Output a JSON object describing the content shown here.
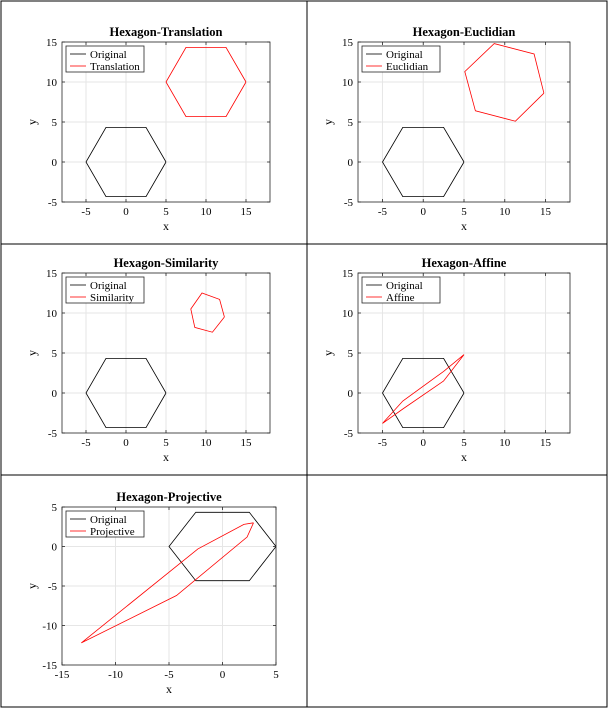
{
  "colors": {
    "original": "#000000",
    "transformed": "#ff0000",
    "grid": "#e6e6e6",
    "axes": "#262626"
  },
  "chart_data": [
    {
      "type": "line",
      "title": "Hexagon-Translation",
      "xlabel": "x",
      "ylabel": "y",
      "xlim": [
        -8,
        18
      ],
      "ylim": [
        -5,
        15
      ],
      "xticks": [
        -5,
        0,
        5,
        10,
        15
      ],
      "yticks": [
        -5,
        0,
        5,
        10,
        15
      ],
      "grid": true,
      "legend_position": "top-left",
      "series": [
        {
          "name": "Original",
          "color": "#000000",
          "x": [
            5,
            2.5,
            -2.5,
            -5,
            -2.5,
            2.5,
            5
          ],
          "y": [
            0,
            4.33,
            4.33,
            0,
            -4.33,
            -4.33,
            0
          ]
        },
        {
          "name": "Translation",
          "color": "#ff0000",
          "x": [
            15,
            12.5,
            7.5,
            5,
            7.5,
            12.5,
            15
          ],
          "y": [
            10,
            14.33,
            14.33,
            10,
            5.67,
            5.67,
            10
          ]
        }
      ]
    },
    {
      "type": "line",
      "title": "Hexagon-Euclidian",
      "xlabel": "x",
      "ylabel": "y",
      "xlim": [
        -8,
        18
      ],
      "ylim": [
        -5,
        15
      ],
      "xticks": [
        -5,
        0,
        5,
        10,
        15
      ],
      "yticks": [
        -5,
        0,
        5,
        10,
        15
      ],
      "grid": true,
      "legend_position": "top-left",
      "series": [
        {
          "name": "Original",
          "color": "#000000",
          "x": [
            5,
            2.5,
            -2.5,
            -5,
            -2.5,
            2.5,
            5
          ],
          "y": [
            0,
            4.33,
            4.33,
            0,
            -4.33,
            -4.33,
            0
          ]
        },
        {
          "name": "Euclidian",
          "color": "#ff0000",
          "x": [
            14.8,
            13.6,
            8.7,
            5.1,
            6.4,
            11.3,
            14.8
          ],
          "y": [
            8.6,
            13.5,
            14.8,
            11.3,
            6.4,
            5.1,
            8.6
          ]
        }
      ]
    },
    {
      "type": "line",
      "title": "Hexagon-Similarity",
      "xlabel": "x",
      "ylabel": "y",
      "xlim": [
        -8,
        18
      ],
      "ylim": [
        -5,
        15
      ],
      "xticks": [
        -5,
        0,
        5,
        10,
        15
      ],
      "yticks": [
        -5,
        0,
        5,
        10,
        15
      ],
      "grid": true,
      "legend_position": "top-left",
      "series": [
        {
          "name": "Original",
          "color": "#000000",
          "x": [
            5,
            2.5,
            -2.5,
            -5,
            -2.5,
            2.5,
            5
          ],
          "y": [
            0,
            4.33,
            4.33,
            0,
            -4.33,
            -4.33,
            0
          ]
        },
        {
          "name": "Similarity",
          "color": "#ff0000",
          "x": [
            12.3,
            11.7,
            9.5,
            8.1,
            8.6,
            10.8,
            12.3
          ],
          "y": [
            9.5,
            11.7,
            12.5,
            10.5,
            8.2,
            7.6,
            9.5
          ]
        }
      ]
    },
    {
      "type": "line",
      "title": "Hexagon-Affine",
      "xlabel": "x",
      "ylabel": "y",
      "xlim": [
        -8,
        18
      ],
      "ylim": [
        -5,
        15
      ],
      "xticks": [
        -5,
        0,
        5,
        10,
        15
      ],
      "yticks": [
        -5,
        0,
        5,
        10,
        15
      ],
      "grid": true,
      "legend_position": "top-left",
      "series": [
        {
          "name": "Original",
          "color": "#000000",
          "x": [
            5,
            2.5,
            -2.5,
            -5,
            -2.5,
            2.5,
            5
          ],
          "y": [
            0,
            4.33,
            4.33,
            0,
            -4.33,
            -4.33,
            0
          ]
        },
        {
          "name": "Affine",
          "color": "#ff0000",
          "x": [
            5,
            2.5,
            -2.5,
            -5,
            -2.5,
            2.5,
            5
          ],
          "y": [
            4.8,
            1.5,
            -2.0,
            -3.8,
            -1.0,
            2.7,
            4.8
          ]
        }
      ]
    },
    {
      "type": "line",
      "title": "Hexagon-Projective",
      "xlabel": "x",
      "ylabel": "y",
      "xlim": [
        -15,
        5
      ],
      "ylim": [
        -15,
        5
      ],
      "xticks": [
        -15,
        -10,
        -5,
        0,
        5
      ],
      "yticks": [
        -15,
        -10,
        -5,
        0,
        5
      ],
      "grid": true,
      "legend_position": "top-left",
      "series": [
        {
          "name": "Original",
          "color": "#000000",
          "x": [
            5,
            2.5,
            -2.5,
            -5,
            -2.5,
            2.5,
            5
          ],
          "y": [
            0,
            4.33,
            4.33,
            0,
            -4.33,
            -4.33,
            0
          ]
        },
        {
          "name": "Projective",
          "color": "#ff0000",
          "x": [
            2.9,
            2.0,
            -2.3,
            -13.2,
            -4.3,
            2.3,
            2.9
          ],
          "y": [
            3.0,
            2.8,
            -0.3,
            -12.2,
            -6.2,
            1.2,
            3.0
          ]
        }
      ]
    }
  ]
}
